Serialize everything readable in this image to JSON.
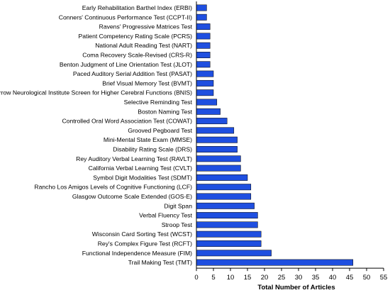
{
  "chart_data": {
    "type": "bar",
    "orientation": "horizontal",
    "categories": [
      "Early Rehabilitation Barthel Index (ERBI)",
      "Conners' Continuous Performance Test (CCPT-II)",
      "Ravens' Progressive Matrices Test",
      "Patient Competency Rating Scale (PCRS)",
      "National Adult Reading Test (NART)",
      "Coma Recovery Scale-Revised (CRS-R)",
      "Benton Judgment of Line Orientation Test (JLOT)",
      "Paced Auditory Serial Addition Test (PASAT)",
      "Brief Visual Memory Test (BVMT)",
      "Barrow Neurological Institute Screen for Higher Cerebral Functions (BNIS)",
      "Selective Reminding Test",
      "Boston Naming Test",
      "Controlled Oral Word Association Test (COWAT)",
      "Grooved Pegboard Test",
      "Mini-Mental State Exam (MMSE)",
      "Disability Rating Scale (DRS)",
      "Rey Auditory Verbal Learning Test (RAVLT)",
      "California Verbal Learning Test (CVLT)",
      "Symbol Digit Modalities Test (SDMT)",
      "Rancho Los Amigos Levels of Cognitive Functioning (LCF)",
      "Glasgow Outcome Scale Extended (GOS-E)",
      "Digit Span",
      "Verbal Fluency Test",
      "Stroop Test",
      "Wisconsin Card Sorting Test (WCST)",
      "Rey's Complex Figure Test (RCFT)",
      "Functional Independence Measure (FIM)",
      "Trail Making Test (TMT)"
    ],
    "values": [
      3,
      3,
      4,
      4,
      4,
      4,
      4,
      5,
      5,
      5,
      6,
      7,
      9,
      11,
      12,
      12,
      13,
      13,
      15,
      16,
      16,
      17,
      18,
      18,
      19,
      19,
      22,
      46
    ],
    "xlabel": "Total Number of Articles",
    "ylabel": "",
    "title": "",
    "xlim": [
      0,
      55
    ],
    "xticks": [
      "0",
      "5",
      "10",
      "15",
      "20",
      "25",
      "30",
      "35",
      "40",
      "45",
      "50",
      "55"
    ],
    "grid": false,
    "legend": "none",
    "bar_color": "#1f4fe0"
  }
}
